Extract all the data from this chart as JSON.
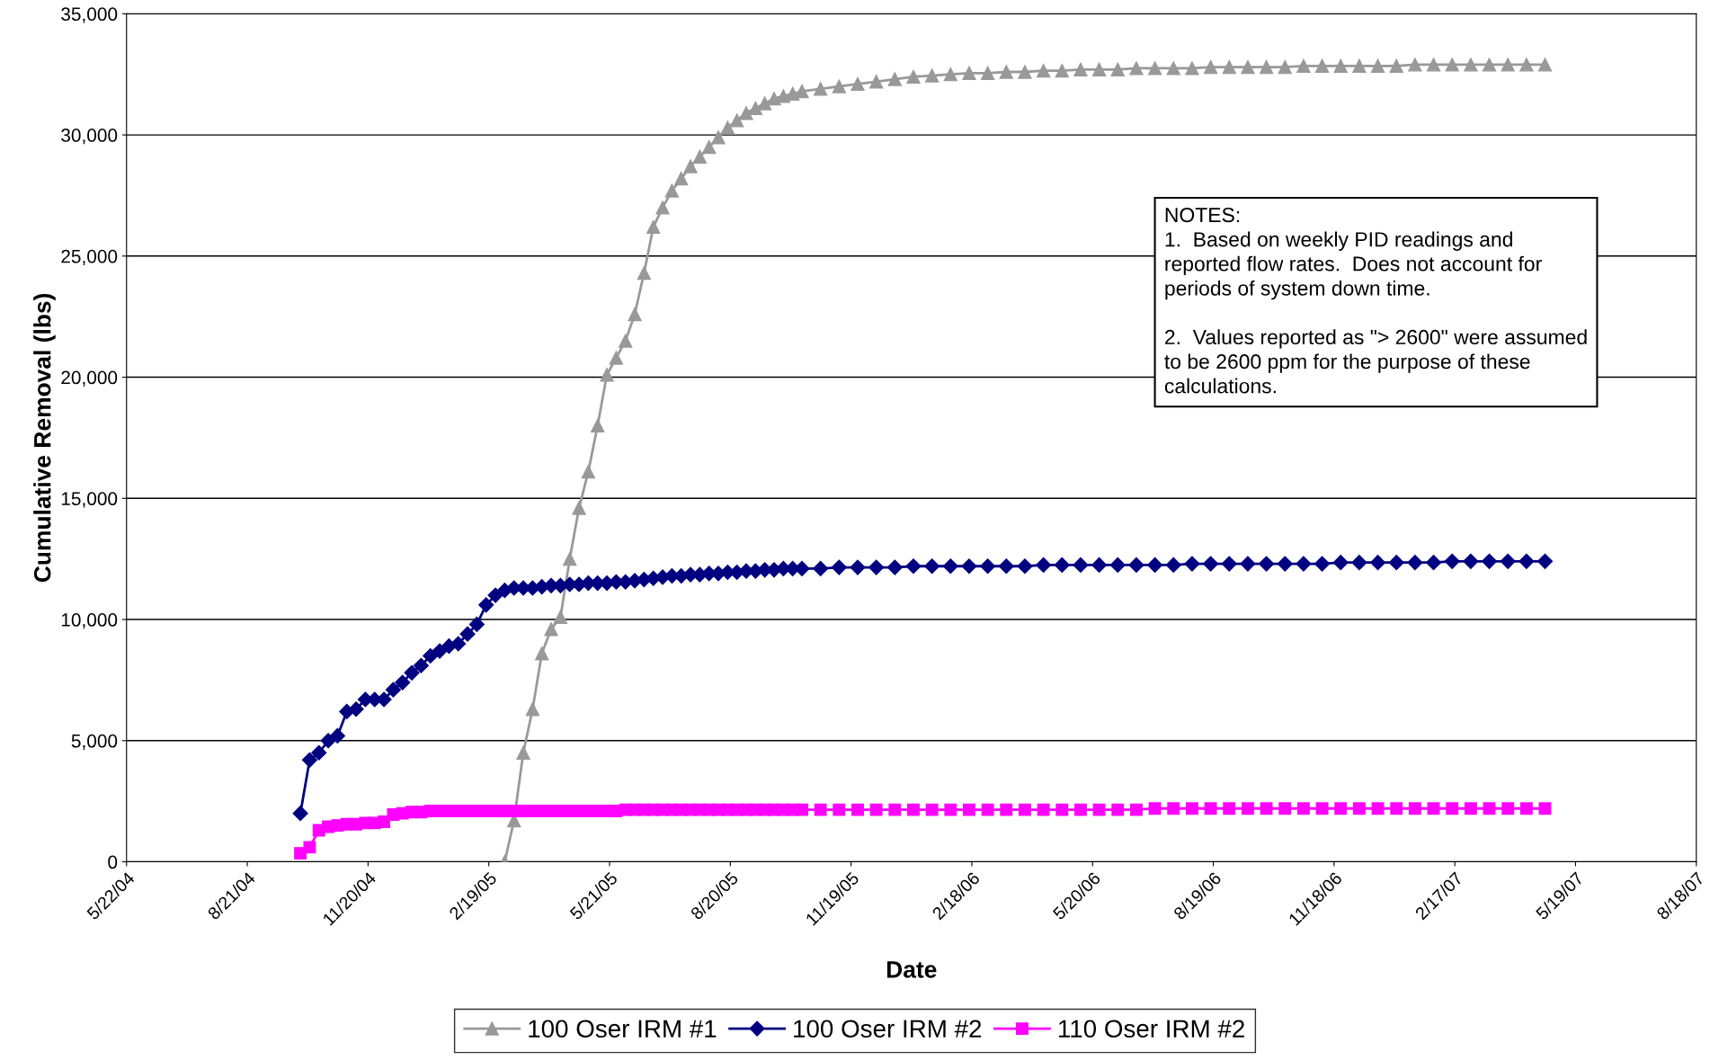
{
  "chart_data": {
    "type": "line",
    "xlabel": "Date",
    "ylabel": "Cumulative Removal (lbs)",
    "x": [
      "2004-09-30",
      "2004-10-07",
      "2004-10-14",
      "2004-10-21",
      "2004-10-28",
      "2004-11-04",
      "2004-11-11",
      "2004-11-18",
      "2004-11-25",
      "2004-12-02",
      "2004-12-09",
      "2004-12-16",
      "2004-12-23",
      "2004-12-30",
      "2005-01-06",
      "2005-01-13",
      "2005-01-20",
      "2005-01-27",
      "2005-02-03",
      "2005-02-10",
      "2005-02-17",
      "2005-02-24",
      "2005-03-03",
      "2005-03-10",
      "2005-03-17",
      "2005-03-24",
      "2005-03-31",
      "2005-04-07",
      "2005-04-14",
      "2005-04-21",
      "2005-04-28",
      "2005-05-05",
      "2005-05-12",
      "2005-05-19",
      "2005-05-26",
      "2005-06-02",
      "2005-06-09",
      "2005-06-16",
      "2005-06-23",
      "2005-06-30",
      "2005-07-07",
      "2005-07-14",
      "2005-07-21",
      "2005-07-28",
      "2005-08-04",
      "2005-08-11",
      "2005-08-18",
      "2005-08-25",
      "2005-09-01",
      "2005-09-08",
      "2005-09-15",
      "2005-09-22",
      "2005-09-29",
      "2005-10-06",
      "2005-10-13",
      "2005-10-27",
      "2005-11-10",
      "2005-11-24",
      "2005-12-08",
      "2005-12-22",
      "2006-01-05",
      "2006-01-19",
      "2006-02-02",
      "2006-02-16",
      "2006-03-02",
      "2006-03-16",
      "2006-03-30",
      "2006-04-13",
      "2006-04-27",
      "2006-05-11",
      "2006-05-25",
      "2006-06-08",
      "2006-06-22",
      "2006-07-06",
      "2006-07-20",
      "2006-08-03",
      "2006-08-17",
      "2006-08-31",
      "2006-09-14",
      "2006-09-28",
      "2006-10-12",
      "2006-10-26",
      "2006-11-09",
      "2006-11-23",
      "2006-12-07",
      "2006-12-21",
      "2007-01-04",
      "2007-01-18",
      "2007-02-01",
      "2007-02-15",
      "2007-03-01",
      "2007-03-15",
      "2007-03-29",
      "2007-04-12",
      "2007-04-26"
    ],
    "series": [
      {
        "name": "100 Oser IRM #1",
        "color": "#999999",
        "marker": "triangle",
        "x": [
          "2005-03-03",
          "2005-03-10",
          "2005-03-17",
          "2005-03-24",
          "2005-03-31",
          "2005-04-07",
          "2005-04-14",
          "2005-04-21",
          "2005-04-28",
          "2005-05-05",
          "2005-05-12",
          "2005-05-19",
          "2005-05-26",
          "2005-06-02",
          "2005-06-09",
          "2005-06-16",
          "2005-06-23",
          "2005-06-30",
          "2005-07-07",
          "2005-07-14",
          "2005-07-21",
          "2005-07-28",
          "2005-08-04",
          "2005-08-11",
          "2005-08-18",
          "2005-08-25",
          "2005-09-01",
          "2005-09-08",
          "2005-09-15",
          "2005-09-22",
          "2005-09-29",
          "2005-10-06",
          "2005-10-13",
          "2005-10-27",
          "2005-11-10",
          "2005-11-24",
          "2005-12-08",
          "2005-12-22",
          "2006-01-05",
          "2006-01-19",
          "2006-02-02",
          "2006-02-16",
          "2006-03-02",
          "2006-03-16",
          "2006-03-30",
          "2006-04-13",
          "2006-04-27",
          "2006-05-11",
          "2006-05-25",
          "2006-06-08",
          "2006-06-22",
          "2006-07-06",
          "2006-07-20",
          "2006-08-03",
          "2006-08-17",
          "2006-08-31",
          "2006-09-14",
          "2006-09-28",
          "2006-10-12",
          "2006-10-26",
          "2006-11-09",
          "2006-11-23",
          "2006-12-07",
          "2006-12-21",
          "2007-01-04",
          "2007-01-18",
          "2007-02-01",
          "2007-02-15",
          "2007-03-01",
          "2007-03-15",
          "2007-03-29",
          "2007-04-12",
          "2007-04-26"
        ],
        "values": [
          0,
          1700,
          4500,
          6300,
          8600,
          9600,
          10100,
          12500,
          14600,
          16100,
          18000,
          20100,
          20800,
          21500,
          22600,
          24300,
          26200,
          27000,
          27700,
          28200,
          28700,
          29100,
          29500,
          29900,
          30300,
          30600,
          30900,
          31100,
          31300,
          31500,
          31600,
          31700,
          31800,
          31900,
          32000,
          32100,
          32200,
          32300,
          32400,
          32450,
          32500,
          32550,
          32550,
          32600,
          32600,
          32650,
          32650,
          32700,
          32700,
          32700,
          32750,
          32750,
          32750,
          32750,
          32800,
          32800,
          32800,
          32800,
          32800,
          32850,
          32850,
          32850,
          32850,
          32850,
          32850,
          32900,
          32900,
          32900,
          32900,
          32900,
          32900,
          32900,
          32900
        ]
      },
      {
        "name": "100 Oser IRM #2",
        "color": "#000080",
        "marker": "diamond",
        "values": [
          2000,
          4200,
          4500,
          5000,
          5200,
          6200,
          6300,
          6700,
          6700,
          6700,
          7100,
          7400,
          7800,
          8100,
          8500,
          8700,
          8900,
          9000,
          9400,
          9800,
          10600,
          11000,
          11200,
          11300,
          11300,
          11300,
          11350,
          11400,
          11400,
          11450,
          11450,
          11500,
          11500,
          11500,
          11550,
          11550,
          11600,
          11650,
          11700,
          11750,
          11800,
          11800,
          11850,
          11850,
          11900,
          11900,
          11950,
          11950,
          12000,
          12000,
          12050,
          12050,
          12100,
          12100,
          12100,
          12100,
          12150,
          12150,
          12150,
          12150,
          12200,
          12200,
          12200,
          12200,
          12200,
          12200,
          12200,
          12250,
          12250,
          12250,
          12250,
          12250,
          12250,
          12250,
          12250,
          12300,
          12300,
          12300,
          12300,
          12300,
          12300,
          12300,
          12300,
          12350,
          12350,
          12350,
          12350,
          12350,
          12350,
          12400,
          12400,
          12400,
          12400,
          12400,
          12400
        ]
      },
      {
        "name": "110 Oser IRM #2",
        "color": "#ff00ff",
        "marker": "square",
        "values": [
          350,
          600,
          1300,
          1450,
          1500,
          1550,
          1550,
          1600,
          1600,
          1650,
          1950,
          2000,
          2050,
          2050,
          2100,
          2100,
          2100,
          2100,
          2100,
          2100,
          2100,
          2100,
          2100,
          2100,
          2100,
          2100,
          2100,
          2100,
          2100,
          2100,
          2100,
          2100,
          2100,
          2100,
          2100,
          2150,
          2150,
          2150,
          2150,
          2150,
          2150,
          2150,
          2150,
          2150,
          2150,
          2150,
          2150,
          2150,
          2150,
          2150,
          2150,
          2150,
          2150,
          2150,
          2150,
          2150,
          2150,
          2150,
          2150,
          2150,
          2150,
          2150,
          2150,
          2150,
          2150,
          2150,
          2150,
          2150,
          2150,
          2150,
          2150,
          2150,
          2150,
          2200,
          2200,
          2200,
          2200,
          2200,
          2200,
          2200,
          2200,
          2200,
          2200,
          2200,
          2200,
          2200,
          2200,
          2200,
          2200,
          2200,
          2200,
          2200,
          2200,
          2200,
          2200
        ]
      }
    ],
    "xlim": [
      "2004-05-22",
      "2007-08-18"
    ],
    "xticks": [
      {
        "value": "2004-05-22",
        "label": "5/22/04"
      },
      {
        "value": "2004-08-21",
        "label": "8/21/04"
      },
      {
        "value": "2004-11-20",
        "label": "11/20/04"
      },
      {
        "value": "2005-02-19",
        "label": "2/19/05"
      },
      {
        "value": "2005-05-21",
        "label": "5/21/05"
      },
      {
        "value": "2005-08-20",
        "label": "8/20/05"
      },
      {
        "value": "2005-11-19",
        "label": "11/19/05"
      },
      {
        "value": "2006-02-18",
        "label": "2/18/06"
      },
      {
        "value": "2006-05-20",
        "label": "5/20/06"
      },
      {
        "value": "2006-08-19",
        "label": "8/19/06"
      },
      {
        "value": "2006-11-18",
        "label": "11/18/06"
      },
      {
        "value": "2007-02-17",
        "label": "2/17/07"
      },
      {
        "value": "2007-05-19",
        "label": "5/19/07"
      },
      {
        "value": "2007-08-18",
        "label": "8/18/07"
      }
    ],
    "ylim": [
      0,
      35000
    ],
    "yticks": [
      0,
      {
        "value": 5000,
        "label": "5,000"
      },
      {
        "value": 10000,
        "label": "10,000"
      },
      {
        "value": 15000,
        "label": "15,000"
      },
      {
        "value": 20000,
        "label": "20,000"
      },
      {
        "value": 25000,
        "label": "25,000"
      },
      {
        "value": 30000,
        "label": "30,000"
      },
      {
        "value": 35000,
        "label": "35,000"
      }
    ],
    "grid": "y",
    "legend": "bottom",
    "line_style": "solid",
    "annotations": [
      "NOTES:\n1.  Based on weekly PID readings and\nreported flow rates.  Does not account for\nperiods of system down time.\n\n2.  Values reported as \"> 2600\" were assumed\nto be 2600 ppm for the purpose of these\ncalculations."
    ]
  }
}
